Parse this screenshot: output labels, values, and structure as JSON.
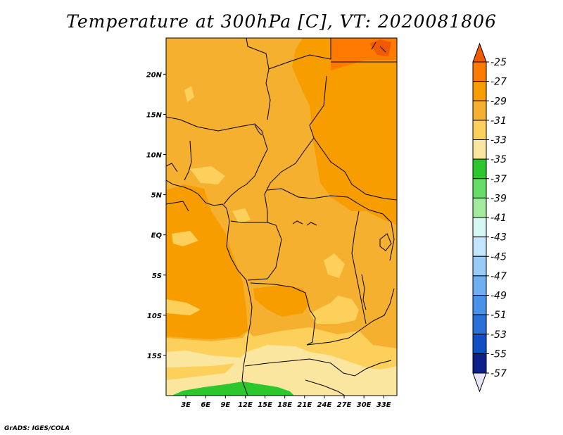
{
  "title": "Temperature at 300hPa [C], VT: 2020081806",
  "credit": "GrADS: IGES/COLA",
  "chart_data": {
    "type": "heatmap",
    "variable": "Temperature",
    "level": "300hPa",
    "units": "C",
    "valid_time": "2020081806",
    "lon_range": [
      0,
      35
    ],
    "lat_range": [
      -20,
      24.5
    ],
    "x_ticks": [
      "3E",
      "6E",
      "9E",
      "12E",
      "15E",
      "18E",
      "21E",
      "24E",
      "27E",
      "30E",
      "33E"
    ],
    "x_tick_values": [
      3,
      6,
      9,
      12,
      15,
      18,
      21,
      24,
      27,
      30,
      33
    ],
    "y_ticks": [
      "20N",
      "15N",
      "10N",
      "5N",
      "EQ",
      "5S",
      "10S",
      "15S"
    ],
    "y_tick_values": [
      20,
      15,
      10,
      5,
      0,
      -5,
      -10,
      -15
    ],
    "colorbar": {
      "labels": [
        "-25",
        "-27",
        "-29",
        "-31",
        "-33",
        "-35",
        "-37",
        "-39",
        "-41",
        "-43",
        "-45",
        "-47",
        "-49",
        "-51",
        "-53",
        "-55",
        "-57"
      ],
      "colors": [
        "#f05a00",
        "#ff7a00",
        "#f79d00",
        "#f5b030",
        "#fcd05a",
        "#fbe6a0",
        "#2cc72c",
        "#66dd66",
        "#a4ea9c",
        "#d6f8f4",
        "#c2e6fb",
        "#98ccf6",
        "#6eb0ef",
        "#4a92e8",
        "#2a70d8",
        "#0f4ec4",
        "#0c2088",
        "#e6e6f6"
      ]
    }
  }
}
